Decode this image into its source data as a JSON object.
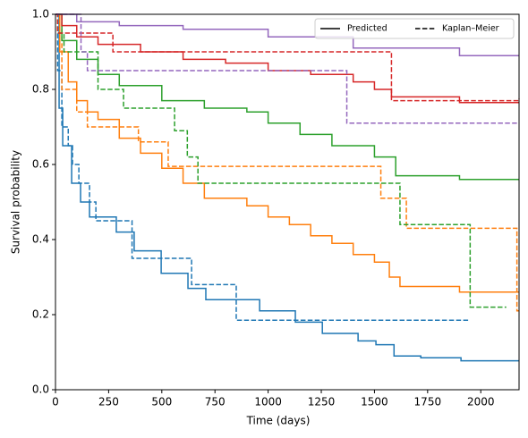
{
  "chart_data": {
    "type": "step_line",
    "xlabel": "Time (days)",
    "ylabel": "Survival probability",
    "xlim": [
      0,
      2180
    ],
    "ylim": [
      0,
      1
    ],
    "xticks": [
      0,
      250,
      500,
      750,
      1000,
      1250,
      1500,
      1750,
      2000
    ],
    "yticks": [
      {
        "value": 0,
        "label": "0.0"
      },
      {
        "value": 0.2,
        "label": "0.2"
      },
      {
        "value": 0.4,
        "label": "0.4"
      },
      {
        "value": 0.6,
        "label": "0.6"
      },
      {
        "value": 0.8,
        "label": "0.8"
      },
      {
        "value": 1,
        "label": "1.0"
      }
    ],
    "grid": false,
    "legend_position": "upper right",
    "legend": [
      {
        "label": "Predicted",
        "linestyle": "solid"
      },
      {
        "label": "Kaplan–Meier",
        "linestyle": "dashed"
      }
    ],
    "series": [
      {
        "color": "#1f77b4",
        "linestyle": "solid",
        "x": [
          0,
          17,
          34,
          76,
          118,
          160,
          286,
          370,
          497,
          623,
          707,
          960,
          1128,
          1255,
          1423,
          1507,
          1592,
          1718,
          1907,
          2180
        ],
        "values": [
          1,
          0.75,
          0.65,
          0.55,
          0.5,
          0.46,
          0.42,
          0.37,
          0.31,
          0.27,
          0.24,
          0.21,
          0.18,
          0.15,
          0.13,
          0.12,
          0.09,
          0.085,
          0.077,
          0.077
        ]
      },
      {
        "color": "#1f77b4",
        "linestyle": "dashed",
        "x": [
          0,
          10,
          30,
          60,
          80,
          110,
          160,
          190,
          360,
          640,
          850,
          1950
        ],
        "values": [
          1,
          0.85,
          0.7,
          0.65,
          0.6,
          0.55,
          0.5,
          0.45,
          0.35,
          0.28,
          0.185,
          0.185
        ]
      },
      {
        "color": "#ff7f0e",
        "linestyle": "solid",
        "x": [
          0,
          20,
          60,
          100,
          150,
          200,
          300,
          400,
          500,
          600,
          700,
          900,
          1000,
          1100,
          1200,
          1300,
          1400,
          1500,
          1570,
          1620,
          1900,
          2180
        ],
        "values": [
          1,
          0.9,
          0.82,
          0.77,
          0.74,
          0.72,
          0.67,
          0.63,
          0.59,
          0.55,
          0.51,
          0.49,
          0.46,
          0.44,
          0.41,
          0.39,
          0.36,
          0.34,
          0.3,
          0.275,
          0.26,
          0.26
        ]
      },
      {
        "color": "#ff7f0e",
        "linestyle": "dashed",
        "x": [
          0,
          30,
          100,
          150,
          390,
          530,
          1530,
          1650,
          2170,
          2180
        ],
        "values": [
          1,
          0.8,
          0.74,
          0.7,
          0.66,
          0.595,
          0.51,
          0.43,
          0.21,
          0.21
        ]
      },
      {
        "color": "#2ca02c",
        "linestyle": "solid",
        "x": [
          0,
          30,
          100,
          200,
          300,
          500,
          700,
          900,
          1000,
          1150,
          1300,
          1500,
          1600,
          1900,
          2180
        ],
        "values": [
          1,
          0.93,
          0.88,
          0.84,
          0.81,
          0.77,
          0.75,
          0.74,
          0.71,
          0.68,
          0.65,
          0.62,
          0.57,
          0.56,
          0.56
        ]
      },
      {
        "color": "#2ca02c",
        "linestyle": "dashed",
        "x": [
          0,
          10,
          40,
          200,
          320,
          560,
          620,
          670,
          1620,
          1950,
          2120
        ],
        "values": [
          1,
          0.95,
          0.9,
          0.8,
          0.75,
          0.69,
          0.62,
          0.55,
          0.44,
          0.22,
          0.22
        ]
      },
      {
        "color": "#d62728",
        "linestyle": "solid",
        "x": [
          0,
          30,
          100,
          200,
          400,
          600,
          800,
          1000,
          1200,
          1400,
          1500,
          1580,
          1900,
          2180
        ],
        "values": [
          1,
          0.97,
          0.94,
          0.92,
          0.9,
          0.88,
          0.87,
          0.85,
          0.84,
          0.82,
          0.8,
          0.78,
          0.765,
          0.765
        ]
      },
      {
        "color": "#d62728",
        "linestyle": "dashed",
        "x": [
          0,
          10,
          270,
          1580,
          2180
        ],
        "values": [
          1,
          0.95,
          0.9,
          0.77,
          0.775
        ]
      },
      {
        "color": "#9467bd",
        "linestyle": "solid",
        "x": [
          0,
          100,
          300,
          600,
          1000,
          1400,
          1900,
          2180
        ],
        "values": [
          1,
          0.98,
          0.97,
          0.96,
          0.94,
          0.91,
          0.89,
          0.89
        ]
      },
      {
        "color": "#9467bd",
        "linestyle": "dashed",
        "x": [
          0,
          120,
          150,
          1370,
          2170
        ],
        "values": [
          1,
          0.9,
          0.85,
          0.71,
          0.71
        ]
      }
    ]
  }
}
